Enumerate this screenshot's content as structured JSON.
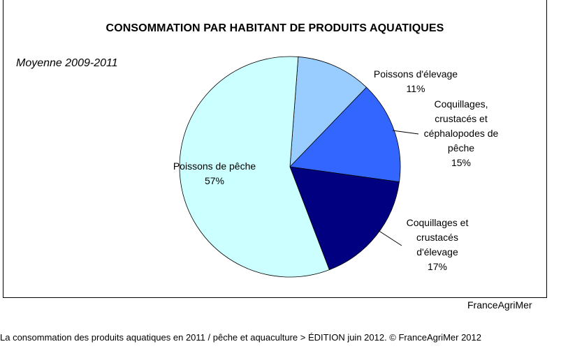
{
  "chart_data": {
    "type": "pie",
    "title": "CONSOMMATION PAR HABITANT DE PRODUITS AQUATIQUES",
    "subtitle": "Moyenne 2009-2011",
    "slices": [
      {
        "label": "Poissons d'élevage",
        "value": 11,
        "pct_label": "11%",
        "color": "#99ccff"
      },
      {
        "label": "Coquillages, crustacés et céphalopodes de pêche",
        "value": 15,
        "pct_label": "15%",
        "color": "#3366ff"
      },
      {
        "label": "Coquillages et crustacés d'élevage",
        "value": 17,
        "pct_label": "17%",
        "color": "#000080"
      },
      {
        "label": "Poissons de pêche",
        "value": 57,
        "pct_label": "57%",
        "color": "#ccffff"
      }
    ],
    "source": "FranceAgriMer"
  },
  "labels": [
    {
      "lines": [
        "Poissons d'élevage"
      ],
      "pct": "11%"
    },
    {
      "lines": [
        "Coquillages,",
        "crustacés et",
        "céphalopodes de",
        "pêche"
      ],
      "pct": "15%"
    },
    {
      "lines": [
        "Coquillages et",
        "crustacés",
        "d'élevage"
      ],
      "pct": "17%"
    },
    {
      "lines": [
        "Poissons de pêche"
      ],
      "pct": "57%"
    }
  ],
  "footer": "La consommation des produits aquatiques en 2011 / pêche et aquaculture > ÉDITION juin 2012.   © FranceAgriMer 2012"
}
